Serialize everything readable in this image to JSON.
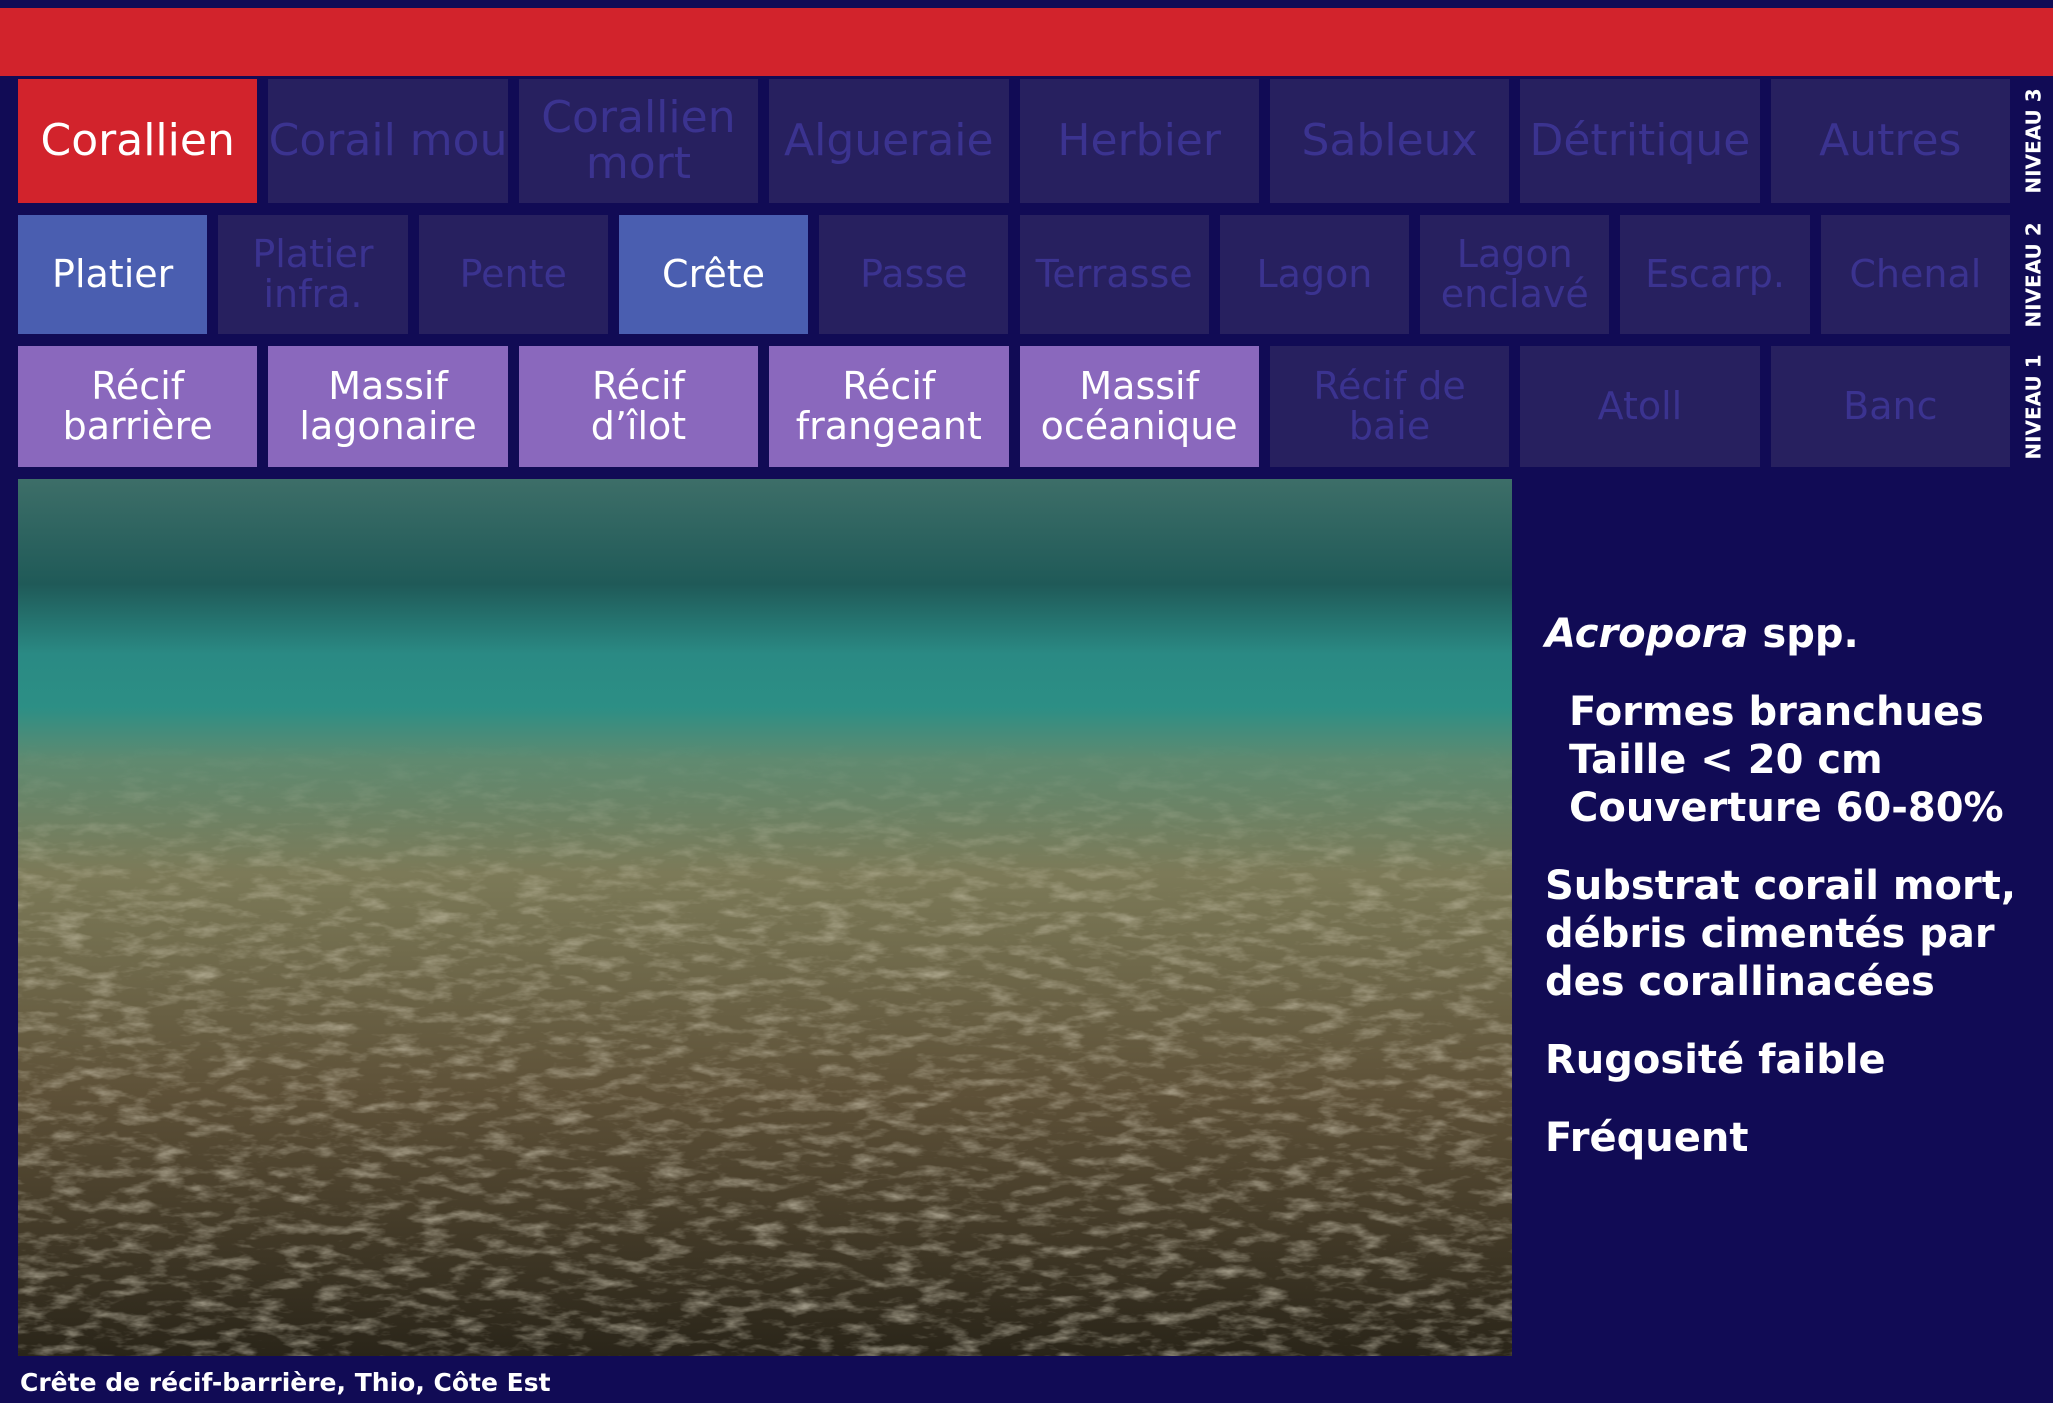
{
  "levels": [
    {
      "name": "NIVEAU 3",
      "kind": "n3",
      "items": [
        {
          "lines": [
            "Corallien"
          ],
          "active": true
        },
        {
          "lines": [
            "Corail mou"
          ],
          "active": false
        },
        {
          "lines": [
            "Corallien",
            "mort"
          ],
          "active": false
        },
        {
          "lines": [
            "Algueraie"
          ],
          "active": false
        },
        {
          "lines": [
            "Herbier"
          ],
          "active": false
        },
        {
          "lines": [
            "Sableux"
          ],
          "active": false
        },
        {
          "lines": [
            "Détritique"
          ],
          "active": false
        },
        {
          "lines": [
            "Autres"
          ],
          "active": false
        }
      ]
    },
    {
      "name": "NIVEAU 2",
      "kind": "n2",
      "items": [
        {
          "lines": [
            "Platier"
          ],
          "active": true
        },
        {
          "lines": [
            "Platier",
            "infra."
          ],
          "active": false
        },
        {
          "lines": [
            "Pente"
          ],
          "active": false
        },
        {
          "lines": [
            "Crête"
          ],
          "active": true
        },
        {
          "lines": [
            "Passe"
          ],
          "active": false
        },
        {
          "lines": [
            "Terrasse"
          ],
          "active": false
        },
        {
          "lines": [
            "Lagon"
          ],
          "active": false
        },
        {
          "lines": [
            "Lagon",
            "enclavé"
          ],
          "active": false
        },
        {
          "lines": [
            "Escarp."
          ],
          "active": false
        },
        {
          "lines": [
            "Chenal"
          ],
          "active": false
        }
      ]
    },
    {
      "name": "NIVEAU 1",
      "kind": "n1",
      "items": [
        {
          "lines": [
            "Récif",
            "barrière"
          ],
          "active": true
        },
        {
          "lines": [
            "Massif",
            "lagonaire"
          ],
          "active": true
        },
        {
          "lines": [
            "Récif",
            "d’îlot"
          ],
          "active": true
        },
        {
          "lines": [
            "Récif",
            "frangeant"
          ],
          "active": true
        },
        {
          "lines": [
            "Massif",
            "océanique"
          ],
          "active": true
        },
        {
          "lines": [
            "Récif de",
            "baie"
          ],
          "active": false
        },
        {
          "lines": [
            "Atoll"
          ],
          "active": false
        },
        {
          "lines": [
            "Banc"
          ],
          "active": false
        }
      ]
    }
  ],
  "description": {
    "species": {
      "italic": "Acropora",
      "rest": "spp."
    },
    "traits": [
      "Formes branchues",
      "Taille < 20 cm",
      "Couverture 60-80%"
    ],
    "substrate": [
      "Substrat corail mort,",
      "débris cimentés par",
      "des corallinacées"
    ],
    "roughness": "Rugosité faible",
    "frequency": "Fréquent"
  },
  "caption": "Crête de récif-barrière, Thio, Côte Est"
}
